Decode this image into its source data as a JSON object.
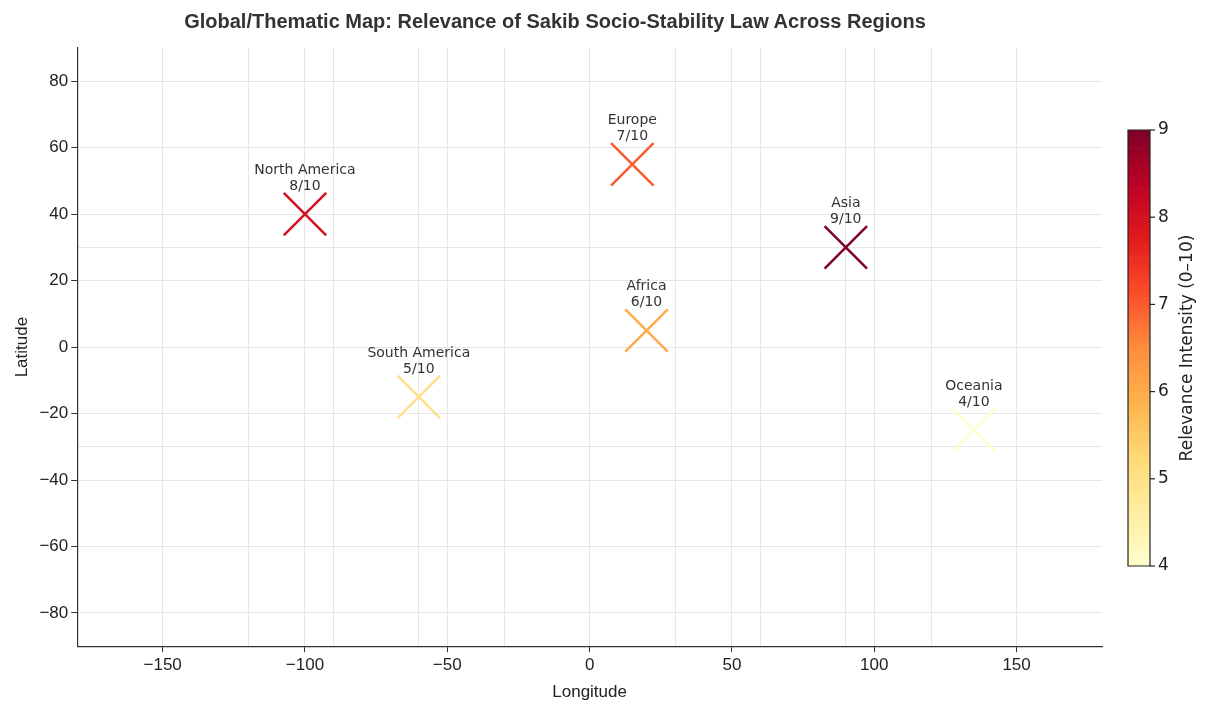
{
  "chart_data": {
    "type": "scatter",
    "title": "Global/Thematic Map: Relevance of Sakib Socio-Stability Law Across Regions",
    "xlabel": "Longitude",
    "ylabel": "Latitude",
    "clabel": "Relevance Intensity (0–10)",
    "x": [
      -100,
      15,
      90,
      20,
      -60,
      135
    ],
    "values": [
      40,
      55,
      30,
      5,
      -15,
      -25
    ],
    "cvalues": [
      8,
      7,
      9,
      6,
      5,
      4
    ],
    "clim": [
      4,
      9
    ],
    "cticks": [
      4,
      5,
      6,
      7,
      8,
      9
    ],
    "marker": "cross",
    "grid": true,
    "xlim": [
      -180,
      180
    ],
    "xticks": [
      -150,
      {
        "value": -120,
        "label": null
      },
      -100,
      {
        "value": -90,
        "label": null
      },
      {
        "value": -60,
        "label": null
      },
      -50,
      {
        "value": -30,
        "label": null
      },
      0,
      {
        "value": 30,
        "label": null
      },
      50,
      {
        "value": 60,
        "label": null
      },
      {
        "value": 90,
        "label": null
      },
      100,
      {
        "value": 120,
        "label": null
      },
      150
    ],
    "ylim": [
      -90,
      90
    ],
    "yticks": [
      -80,
      -60,
      -40,
      {
        "value": -30,
        "label": null
      },
      -20,
      0,
      20,
      {
        "value": 30,
        "label": null
      },
      40,
      60,
      80
    ],
    "annotations": [
      {
        "text": "North America\n8/10",
        "x": -100,
        "y": 40
      },
      {
        "text": "Europe\n7/10",
        "x": 15,
        "y": 55
      },
      {
        "text": "Asia\n9/10",
        "x": 90,
        "y": 30
      },
      {
        "text": "Africa\n6/10",
        "x": 20,
        "y": 5
      },
      {
        "text": "South America\n5/10",
        "x": -60,
        "y": -15
      },
      {
        "text": "Oceania\n4/10",
        "x": 135,
        "y": -25
      }
    ]
  }
}
